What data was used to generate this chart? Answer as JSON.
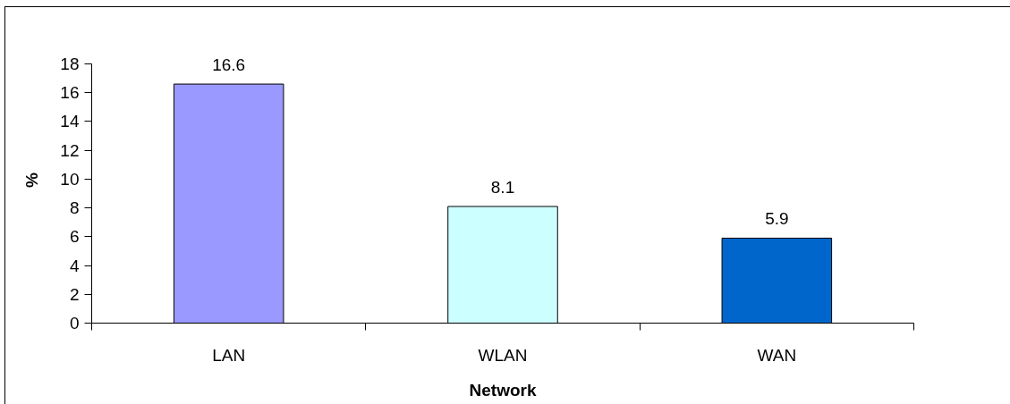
{
  "chart_data": {
    "type": "bar",
    "xlabel": "Network",
    "ylabel": "%",
    "categories": [
      "LAN",
      "WLAN",
      "WAN"
    ],
    "values": [
      16.6,
      8.1,
      5.9
    ],
    "colors": [
      "#9999ff",
      "#ccffff",
      "#0066cc"
    ],
    "ylim": [
      0,
      18
    ],
    "yticks": [
      0,
      2,
      4,
      6,
      8,
      10,
      12,
      14,
      16,
      18
    ],
    "grid": false,
    "data_labels": true
  }
}
